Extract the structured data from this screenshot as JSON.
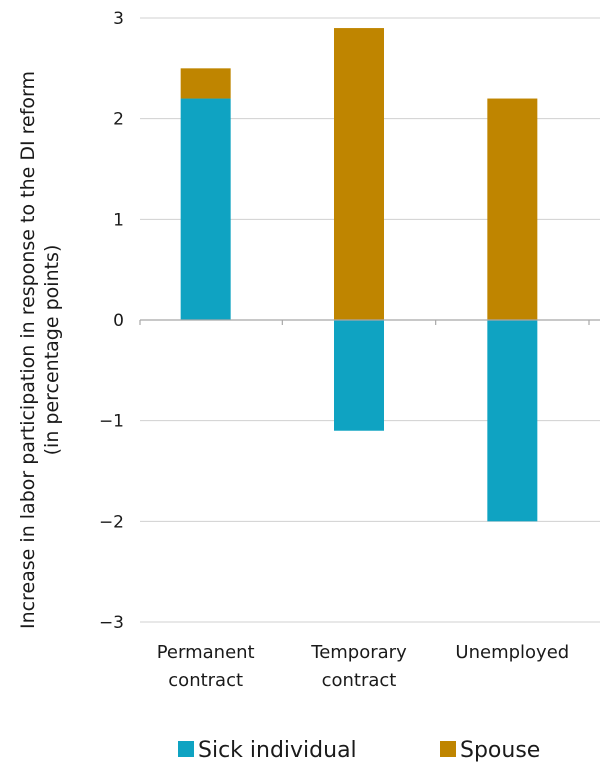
{
  "chart_data": {
    "type": "bar",
    "stacked": true,
    "categories": [
      [
        "Permanent",
        "contract"
      ],
      [
        "Temporary",
        "contract"
      ],
      [
        "Unemployed"
      ]
    ],
    "series": [
      {
        "name": "Sick individual",
        "color": "#0fa3c2",
        "values": [
          2.2,
          -1.1,
          -2.0
        ]
      },
      {
        "name": "Spouse",
        "color": "#bf8500",
        "values": [
          0.3,
          2.9,
          2.2
        ]
      }
    ],
    "ylabel": [
      "Increase in labor participation in response to the DI reform",
      "(in percentage points)"
    ],
    "ylim": [
      -3,
      3
    ],
    "yticks": [
      3,
      2,
      1,
      0,
      -1,
      -2,
      -3
    ],
    "ytick_labels": [
      "3",
      "2",
      "1",
      "0",
      "−1",
      "−2",
      "−3"
    ],
    "grid": "horizontal",
    "legend": "bottom"
  }
}
